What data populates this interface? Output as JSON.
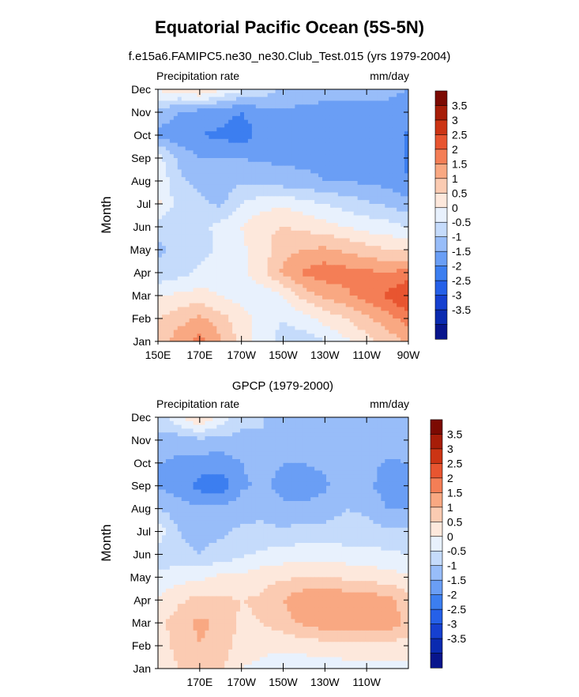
{
  "header": {
    "title": "Equatorial Pacific Ocean (5S-5N)",
    "subtitle": "f.e15a6.FAMIPC5.ne30_ne30.Club_Test.015 (yrs 1979-2004)"
  },
  "chart_data": [
    {
      "type": "heatmap",
      "title": "",
      "left_label": "Precipitation rate",
      "right_label": "mm/day",
      "ylabel": "Month",
      "xlabel": "",
      "y_ticks": [
        "Jan",
        "Feb",
        "Mar",
        "Apr",
        "May",
        "Jun",
        "Jul",
        "Aug",
        "Sep",
        "Oct",
        "Nov",
        "Dec"
      ],
      "x_ticks": [
        "150E",
        "170E",
        "170W",
        "150W",
        "130W",
        "110W",
        "90W"
      ],
      "x_tick_values": [
        150,
        170,
        190,
        210,
        230,
        250,
        270
      ],
      "xlim": [
        150,
        270
      ],
      "x": [
        150,
        160,
        170,
        180,
        190,
        200,
        210,
        220,
        230,
        240,
        250,
        260,
        270
      ],
      "z": [
        [
          1.2,
          1.8,
          2.2,
          1.6,
          0.8,
          0.2,
          -0.2,
          -0.3,
          0.0,
          0.4,
          0.8,
          1.2,
          1.6
        ],
        [
          1.0,
          1.3,
          1.6,
          1.2,
          0.7,
          0.3,
          0.0,
          0.3,
          0.7,
          1.0,
          1.4,
          1.8,
          2.2
        ],
        [
          0.5,
          0.6,
          0.7,
          0.5,
          0.3,
          0.2,
          0.5,
          1.2,
          1.6,
          1.9,
          2.2,
          2.6,
          3.1
        ],
        [
          -0.4,
          -0.2,
          0.1,
          0.3,
          0.4,
          0.8,
          1.6,
          2.1,
          2.3,
          2.2,
          2.1,
          2.0,
          2.2
        ],
        [
          -0.6,
          -0.4,
          -0.2,
          0.1,
          0.4,
          0.8,
          1.3,
          1.5,
          1.6,
          1.4,
          1.2,
          1.0,
          1.0
        ],
        [
          -0.3,
          -0.4,
          -0.2,
          0.2,
          0.5,
          0.9,
          1.0,
          0.9,
          0.7,
          0.5,
          0.3,
          0.2,
          0.0
        ],
        [
          0.6,
          -0.2,
          -0.4,
          -0.6,
          0.0,
          0.3,
          0.4,
          0.2,
          0.0,
          -0.2,
          -0.4,
          -0.6,
          -0.8
        ],
        [
          0.4,
          -0.4,
          -0.6,
          -0.8,
          -0.6,
          -0.6,
          -0.8,
          -0.9,
          -1.0,
          -1.0,
          -1.1,
          -1.2,
          -1.5
        ],
        [
          0.2,
          -0.6,
          -1.0,
          -1.0,
          -1.0,
          -1.1,
          -1.1,
          -1.1,
          -1.1,
          -1.1,
          -1.1,
          -1.2,
          -1.6
        ],
        [
          -1.1,
          -1.3,
          -1.5,
          -1.6,
          -1.8,
          -1.3,
          -1.2,
          -1.1,
          -1.1,
          -1.1,
          -1.1,
          -1.2,
          -1.6
        ],
        [
          -0.7,
          -1.0,
          -1.2,
          -1.3,
          -1.5,
          -1.2,
          -1.1,
          -1.1,
          -1.1,
          -1.1,
          -1.1,
          -1.1,
          -1.3
        ],
        [
          0.6,
          0.7,
          1.1,
          0.5,
          0.1,
          -0.2,
          -0.6,
          -0.8,
          -0.9,
          -0.9,
          -0.9,
          -0.9,
          -1.0
        ]
      ]
    },
    {
      "type": "heatmap",
      "title": "GPCP (1979-2000)",
      "left_label": "Precipitation rate",
      "right_label": "mm/day",
      "ylabel": "Month",
      "xlabel": "",
      "y_ticks": [
        "Jan",
        "Feb",
        "Mar",
        "Apr",
        "May",
        "Jun",
        "Jul",
        "Aug",
        "Sep",
        "Oct",
        "Nov",
        "Dec"
      ],
      "x_ticks": [
        "170E",
        "170W",
        "150W",
        "130W",
        "110W"
      ],
      "x_tick_values": [
        170,
        190,
        210,
        230,
        250
      ],
      "xlim": [
        150,
        270
      ],
      "x": [
        150,
        160,
        170,
        180,
        190,
        200,
        210,
        220,
        230,
        240,
        250,
        260,
        270
      ],
      "z": [
        [
          0.6,
          1.0,
          1.3,
          1.1,
          0.5,
          0.4,
          0.2,
          0.2,
          0.2,
          0.3,
          0.3,
          0.3,
          0.3
        ],
        [
          0.7,
          1.2,
          1.5,
          1.3,
          0.7,
          0.6,
          0.6,
          0.7,
          0.8,
          0.8,
          0.8,
          0.8,
          0.8
        ],
        [
          0.8,
          1.3,
          1.6,
          1.4,
          0.9,
          1.0,
          1.3,
          1.6,
          1.8,
          1.9,
          1.9,
          1.8,
          1.4
        ],
        [
          0.5,
          0.9,
          1.2,
          1.1,
          1.0,
          1.1,
          1.5,
          1.9,
          2.0,
          1.9,
          1.8,
          1.7,
          1.2
        ],
        [
          0.2,
          0.3,
          0.4,
          0.6,
          0.6,
          0.8,
          0.9,
          1.0,
          1.0,
          0.9,
          0.8,
          0.7,
          0.6
        ],
        [
          -0.3,
          -0.4,
          -0.5,
          -0.3,
          -0.1,
          0.1,
          0.2,
          0.3,
          0.3,
          0.2,
          0.2,
          0.1,
          0.0
        ],
        [
          0.3,
          -0.5,
          -0.7,
          -0.6,
          -0.4,
          -0.4,
          -0.4,
          -0.3,
          -0.3,
          -0.3,
          -0.3,
          -0.4,
          -0.4
        ],
        [
          -0.5,
          -0.8,
          -0.9,
          -0.9,
          -0.7,
          -0.6,
          -0.9,
          -0.9,
          -0.8,
          -0.5,
          -0.6,
          -1.0,
          -1.0
        ],
        [
          -1.1,
          -1.2,
          -1.7,
          -1.8,
          -1.1,
          -0.9,
          -1.2,
          -1.2,
          -1.1,
          -0.6,
          -0.9,
          -1.2,
          -1.1
        ],
        [
          -1.0,
          -1.1,
          -1.2,
          -1.3,
          -1.0,
          -0.8,
          -1.0,
          -1.0,
          -0.9,
          -0.6,
          -0.8,
          -1.1,
          -1.0
        ],
        [
          -0.6,
          -0.8,
          -0.6,
          -0.7,
          -0.6,
          -0.5,
          -0.6,
          -0.6,
          -0.6,
          -0.5,
          -0.5,
          -0.6,
          -0.7
        ],
        [
          -0.4,
          0.4,
          1.1,
          0.3,
          -0.4,
          -0.5,
          -0.6,
          -0.6,
          -0.6,
          -0.6,
          -0.6,
          -0.6,
          -0.6
        ]
      ]
    }
  ],
  "colorbar": {
    "labels": [
      "3.5",
      "3",
      "2.5",
      "2",
      "1.5",
      "1",
      "0.5",
      "0",
      "-0.5",
      "-1",
      "-1.5",
      "-2",
      "-2.5",
      "-3",
      "-3.5"
    ],
    "levels": [
      -3.5,
      -3,
      -2.5,
      -2,
      -1.5,
      -1,
      -0.5,
      0,
      0.5,
      1,
      1.5,
      2,
      2.5,
      3,
      3.5
    ],
    "colors": [
      "#08158c",
      "#0a2ab0",
      "#1640d0",
      "#2560e8",
      "#3c7ef0",
      "#6a9ef5",
      "#98bdf9",
      "#c5dbfb",
      "#e8f1fd",
      "#fde8dc",
      "#fbcbb2",
      "#f9a882",
      "#f47e56",
      "#e85530",
      "#cc3414",
      "#a71d08",
      "#7c0a02"
    ]
  }
}
